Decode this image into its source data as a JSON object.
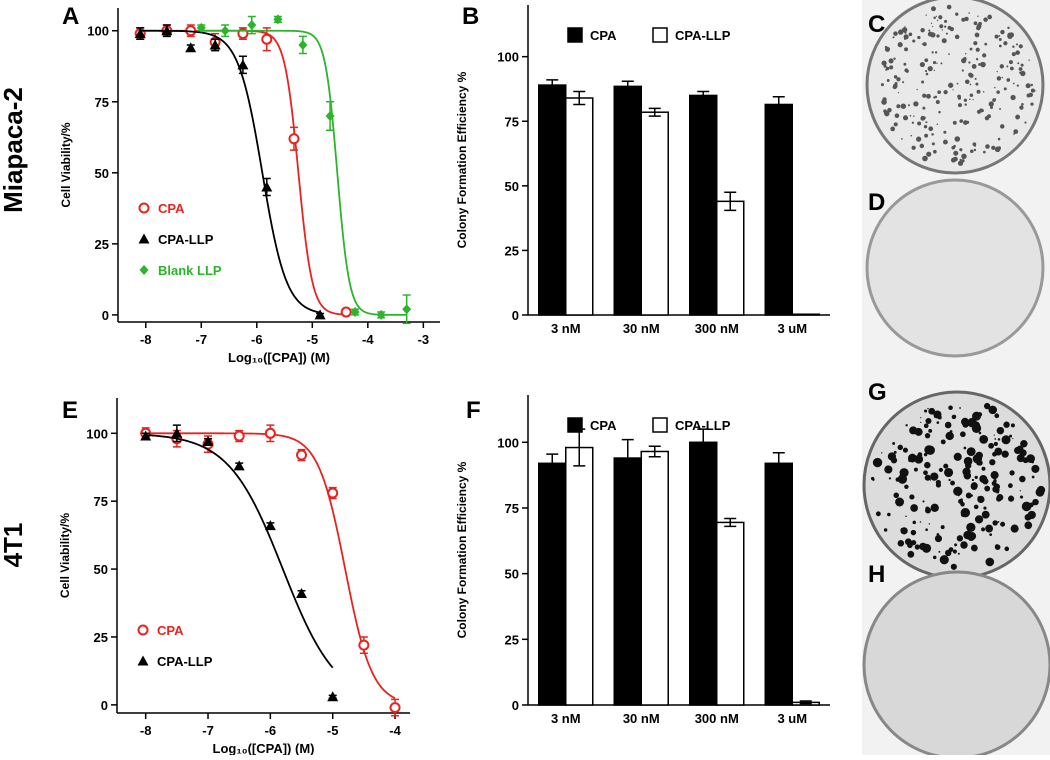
{
  "row_labels": [
    "Miapaca-2",
    "4T1"
  ],
  "plates": [
    {
      "label": "C"
    },
    {
      "label": "D"
    },
    {
      "label": "G"
    },
    {
      "label": "H"
    }
  ],
  "chart_data": [
    {
      "panel": "A",
      "type": "dose_response",
      "xlabel": "Log₁₀([CPA]) (M)",
      "ylabel": "Cell Viability/%",
      "xlim": [
        -8.5,
        -2.7
      ],
      "xticks": [
        -8,
        -7,
        -6,
        -5,
        -4,
        -3
      ],
      "ylim": [
        -2.5,
        108
      ],
      "yticks": [
        0,
        25,
        50,
        75,
        100
      ],
      "legend": "lower left",
      "series": [
        {
          "name": "CPA",
          "color": "#e8231f",
          "marker": "open-circle",
          "x": [
            -8.1,
            -7.62,
            -7.19,
            -6.75,
            -6.25,
            -5.82,
            -5.33,
            -4.39
          ],
          "values": [
            99,
            100,
            100,
            96,
            99,
            97,
            62,
            1
          ],
          "errors": [
            2,
            2,
            2,
            3,
            2,
            4,
            4,
            1
          ],
          "fit": {
            "top": 100,
            "bottom": 0,
            "log_ic50": -5.25,
            "hill": 3.5
          }
        },
        {
          "name": "CPA-LLP",
          "color": "#000000",
          "marker": "triangle",
          "x": [
            -8.1,
            -7.62,
            -7.19,
            -6.75,
            -6.25,
            -5.82,
            -4.86
          ],
          "values": [
            99,
            100,
            94,
            95,
            88,
            45,
            0
          ],
          "errors": [
            2,
            2,
            1,
            2,
            3,
            3,
            0.5
          ],
          "fit": {
            "top": 100,
            "bottom": 0,
            "log_ic50": -5.9,
            "hill": 2
          }
        },
        {
          "name": "Blank LLP",
          "color": "#2ab52a",
          "marker": "diamond",
          "x": [
            -7.0,
            -6.57,
            -6.09,
            -5.62,
            -5.17,
            -4.68,
            -4.23,
            -3.76,
            -3.3
          ],
          "values": [
            101,
            100,
            102,
            104,
            95,
            70,
            1,
            0,
            2
          ],
          "errors": [
            1,
            2,
            3,
            1,
            3,
            5,
            1,
            1,
            5
          ],
          "fit": {
            "top": 100,
            "bottom": 0,
            "log_ic50": -4.55,
            "hill": 4
          }
        }
      ]
    },
    {
      "panel": "B",
      "type": "bar",
      "ylabel": "Colony Formation Efficiency %",
      "categories": [
        "3 nM",
        "30 nM",
        "300 nM",
        "3 uM"
      ],
      "ylim": [
        0,
        120
      ],
      "yticks": [
        0,
        25,
        50,
        75,
        100
      ],
      "legend": "upper center",
      "series": [
        {
          "name": "CPA",
          "color": "#000000",
          "values": [
            89,
            88.5,
            85,
            81.5
          ],
          "errors": [
            2,
            2,
            1.5,
            3
          ]
        },
        {
          "name": "CPA-LLP",
          "color": "#ffffff",
          "values": [
            84,
            78.5,
            44,
            0.3
          ],
          "errors": [
            2.5,
            1.5,
            3.5,
            0
          ]
        }
      ]
    },
    {
      "panel": "E",
      "type": "dose_response",
      "xlabel": "Log₁₀([CPA]) (M)",
      "ylabel": "Cell Viability/%",
      "xlim": [
        -8.46,
        -3.76
      ],
      "xticks": [
        -8,
        -7,
        -6,
        -5,
        -4
      ],
      "ylim": [
        -3,
        113
      ],
      "yticks": [
        0,
        25,
        50,
        75,
        100
      ],
      "legend": "lower left",
      "series": [
        {
          "name": "CPA",
          "color": "#e8231f",
          "marker": "open-circle",
          "x": [
            -8,
            -7.5,
            -7,
            -6.5,
            -6,
            -5.5,
            -5,
            -4.5,
            -4
          ],
          "values": [
            100,
            98,
            96,
            99,
            100,
            92,
            78,
            22,
            -1
          ],
          "errors": [
            2,
            3,
            3,
            2,
            3,
            2,
            2,
            3,
            3
          ],
          "fit": {
            "top": 100,
            "bottom": 0,
            "log_ic50": -4.8,
            "hill": 2
          }
        },
        {
          "name": "CPA-LLP",
          "color": "#000000",
          "marker": "triangle",
          "x": [
            -8,
            -7.5,
            -7,
            -6.5,
            -6,
            -5.5,
            -5
          ],
          "values": [
            99,
            100,
            97,
            88,
            66,
            41,
            3
          ],
          "errors": [
            1,
            3,
            1,
            1,
            1,
            1,
            0.5
          ],
          "fit": {
            "top": 100,
            "bottom": 0,
            "log_ic50": -5.8,
            "hill": 1
          }
        }
      ]
    },
    {
      "panel": "F",
      "type": "bar",
      "ylabel": "Colony Formation Efficiency %",
      "categories": [
        "3 nM",
        "30 nM",
        "300 nM",
        "3 uM"
      ],
      "ylim": [
        0,
        118
      ],
      "yticks": [
        0,
        25,
        50,
        75,
        100
      ],
      "legend": "upper center",
      "series": [
        {
          "name": "CPA",
          "color": "#000000",
          "values": [
            92,
            94,
            100,
            92
          ],
          "errors": [
            3.5,
            7,
            5,
            4
          ]
        },
        {
          "name": "CPA-LLP",
          "color": "#ffffff",
          "values": [
            98,
            96.5,
            69.5,
            1
          ],
          "errors": [
            7,
            2,
            1.5,
            0.5
          ]
        }
      ]
    }
  ]
}
